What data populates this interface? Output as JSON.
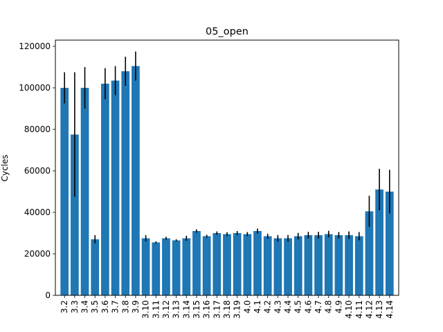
{
  "chart_data": {
    "type": "bar",
    "title": "05_open",
    "xlabel": "",
    "ylabel": "Cycles",
    "ylim": [
      0,
      123000
    ],
    "yticks": [
      0,
      20000,
      40000,
      60000,
      80000,
      100000,
      120000
    ],
    "grid": false,
    "legend": "none",
    "bar_color": "#1f77b4",
    "error_color": "#000000",
    "categories": [
      "3.2",
      "3.3",
      "3.4",
      "3.5",
      "3.6",
      "3.7",
      "3.8",
      "3.9",
      "3.10",
      "3.11",
      "3.12",
      "3.13",
      "3.14",
      "3.15",
      "3.16",
      "3.17",
      "3.18",
      "3.19",
      "4.0",
      "4.1",
      "4.2",
      "4.3",
      "4.4",
      "4.5",
      "4.6",
      "4.7",
      "4.8",
      "4.9",
      "4.10",
      "4.11",
      "4.12",
      "4.13",
      "4.14"
    ],
    "values": [
      100000,
      77500,
      100000,
      27000,
      102000,
      103500,
      108000,
      110500,
      27500,
      25500,
      27500,
      26500,
      27500,
      31000,
      28500,
      30000,
      29500,
      30000,
      29500,
      31000,
      28500,
      27500,
      27500,
      28500,
      29000,
      29000,
      29500,
      29000,
      29000,
      28500,
      40500,
      51000,
      50000
    ],
    "errors": [
      7500,
      30000,
      10000,
      2000,
      7500,
      7000,
      7000,
      7000,
      1500,
      500,
      700,
      500,
      1200,
      800,
      700,
      800,
      900,
      1000,
      1000,
      1200,
      1200,
      1600,
      1600,
      1600,
      1600,
      1600,
      1600,
      1500,
      1800,
      2000,
      7500,
      10000,
      10500
    ]
  }
}
